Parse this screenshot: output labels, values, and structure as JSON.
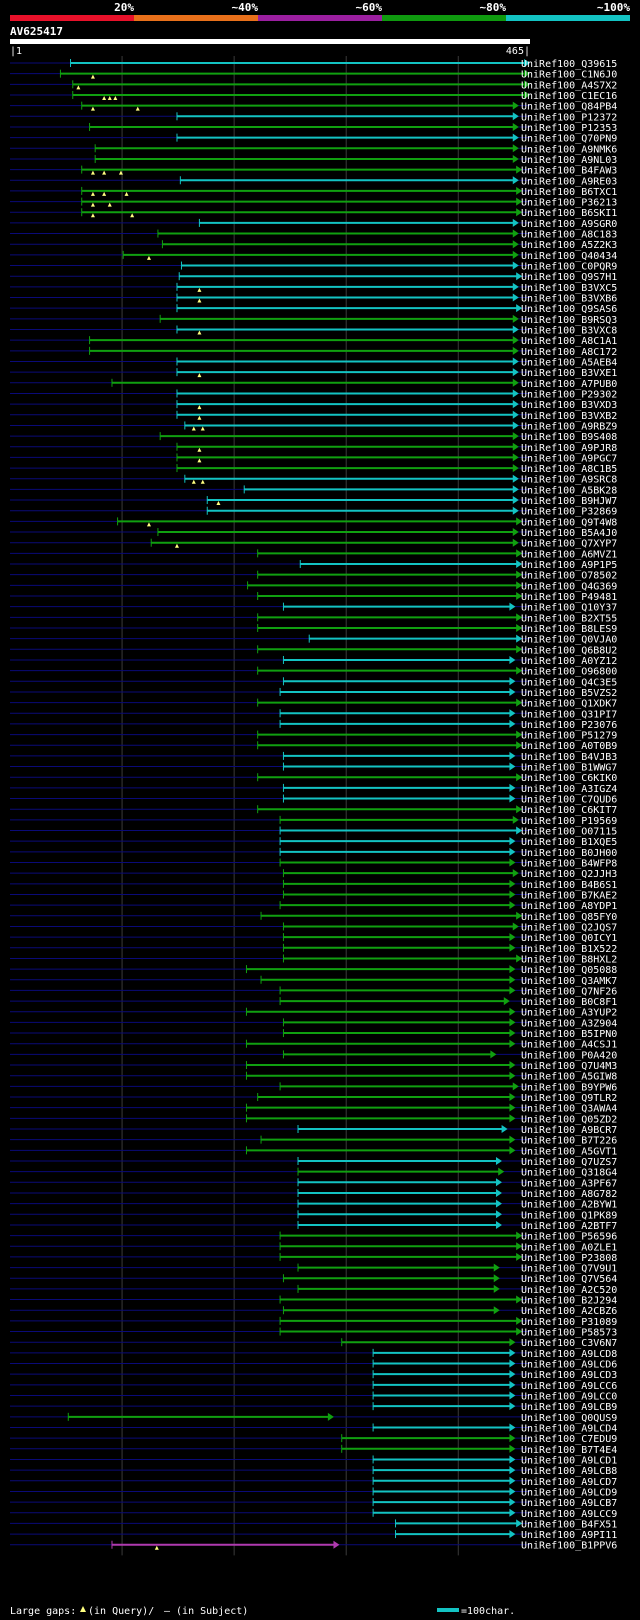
{
  "header": {
    "query_id": "AV625417",
    "range_start": "|1",
    "range_end": "465|",
    "query_length": 465,
    "percent_labels": [
      "20%",
      "~40%",
      "~60%",
      "~80%",
      "~100%"
    ],
    "bar_colors": [
      "#e8112a",
      "#e8701a",
      "#9b1fa0",
      "#0f9a0f",
      "#13c3c3"
    ]
  },
  "footer": {
    "large_gaps_label": "Large gaps:",
    "query_gap_label": "(in Query)/",
    "subject_gap_label": "— (in Subject)",
    "scale_label": "=100char.",
    "scale_chars": 100
  },
  "colors": {
    "cyan": "#13c3c3",
    "green": "#10a010",
    "magenta": "#b03ab0",
    "navy": "#0a0a78",
    "gap": "#ffff80",
    "grid": "#3a3a3a"
  },
  "hits": [
    {
      "id": "UniRef100_Q39615",
      "s": 55,
      "e": 465,
      "c": "cyan",
      "g": []
    },
    {
      "id": "UniRef100_C1N6J0",
      "s": 46,
      "e": 465,
      "c": "green",
      "g": [
        75
      ]
    },
    {
      "id": "UniRef100_A4S7X2",
      "s": 57,
      "e": 465,
      "c": "green",
      "g": [
        62
      ]
    },
    {
      "id": "UniRef100_C1EC16",
      "s": 57,
      "e": 465,
      "c": "green",
      "g": [
        85,
        90,
        95
      ]
    },
    {
      "id": "UniRef100_Q84PB4",
      "s": 65,
      "e": 455,
      "c": "green",
      "g": [
        75,
        115
      ]
    },
    {
      "id": "UniRef100_P12372",
      "s": 150,
      "e": 455,
      "c": "cyan",
      "g": []
    },
    {
      "id": "UniRef100_P12353",
      "s": 72,
      "e": 455,
      "c": "green",
      "g": []
    },
    {
      "id": "UniRef100_Q70PN9",
      "s": 150,
      "e": 455,
      "c": "cyan",
      "g": []
    },
    {
      "id": "UniRef100_A9NMK6",
      "s": 77,
      "e": 455,
      "c": "green",
      "g": []
    },
    {
      "id": "UniRef100_A9NL03",
      "s": 77,
      "e": 455,
      "c": "green",
      "g": []
    },
    {
      "id": "UniRef100_B4FAW3",
      "s": 65,
      "e": 458,
      "c": "green",
      "g": [
        75,
        85,
        100
      ]
    },
    {
      "id": "UniRef100_A9RE03",
      "s": 153,
      "e": 455,
      "c": "cyan",
      "g": []
    },
    {
      "id": "UniRef100_B6TXC1",
      "s": 65,
      "e": 458,
      "c": "green",
      "g": [
        75,
        85,
        105
      ]
    },
    {
      "id": "UniRef100_P36213",
      "s": 65,
      "e": 458,
      "c": "green",
      "g": [
        75,
        90
      ]
    },
    {
      "id": "UniRef100_B6SKI1",
      "s": 65,
      "e": 458,
      "c": "green",
      "g": [
        75,
        110
      ]
    },
    {
      "id": "UniRef100_A9SGR0",
      "s": 170,
      "e": 455,
      "c": "cyan",
      "g": []
    },
    {
      "id": "UniRef100_A8C183",
      "s": 133,
      "e": 455,
      "c": "green",
      "g": []
    },
    {
      "id": "UniRef100_A5Z2K3",
      "s": 137,
      "e": 455,
      "c": "green",
      "g": []
    },
    {
      "id": "UniRef100_Q40434",
      "s": 102,
      "e": 455,
      "c": "green",
      "g": [
        125
      ]
    },
    {
      "id": "UniRef100_C0PQR9",
      "s": 154,
      "e": 455,
      "c": "cyan",
      "g": []
    },
    {
      "id": "UniRef100_Q9S7H1",
      "s": 152,
      "e": 458,
      "c": "cyan",
      "g": []
    },
    {
      "id": "UniRef100_B3VXC5",
      "s": 150,
      "e": 455,
      "c": "cyan",
      "g": [
        170
      ]
    },
    {
      "id": "UniRef100_B3VXB6",
      "s": 150,
      "e": 455,
      "c": "cyan",
      "g": [
        170
      ]
    },
    {
      "id": "UniRef100_Q9SAS6",
      "s": 150,
      "e": 458,
      "c": "cyan",
      "g": []
    },
    {
      "id": "UniRef100_B9RSQ3",
      "s": 135,
      "e": 455,
      "c": "green",
      "g": []
    },
    {
      "id": "UniRef100_B3VXC8",
      "s": 150,
      "e": 455,
      "c": "cyan",
      "g": [
        170
      ]
    },
    {
      "id": "UniRef100_A8C1A1",
      "s": 72,
      "e": 455,
      "c": "green",
      "g": []
    },
    {
      "id": "UniRef100_A8C172",
      "s": 72,
      "e": 455,
      "c": "green",
      "g": []
    },
    {
      "id": "UniRef100_A5AEB4",
      "s": 150,
      "e": 455,
      "c": "cyan",
      "g": []
    },
    {
      "id": "UniRef100_B3VXE1",
      "s": 150,
      "e": 455,
      "c": "cyan",
      "g": [
        170
      ]
    },
    {
      "id": "UniRef100_A7PUB0",
      "s": 92,
      "e": 455,
      "c": "green",
      "g": []
    },
    {
      "id": "UniRef100_P29302",
      "s": 150,
      "e": 455,
      "c": "cyan",
      "g": []
    },
    {
      "id": "UniRef100_B3VXD3",
      "s": 150,
      "e": 455,
      "c": "cyan",
      "g": [
        170
      ]
    },
    {
      "id": "UniRef100_B3VXB2",
      "s": 150,
      "e": 455,
      "c": "cyan",
      "g": [
        170
      ]
    },
    {
      "id": "UniRef100_A9RBZ9",
      "s": 157,
      "e": 455,
      "c": "cyan",
      "g": [
        165,
        173
      ]
    },
    {
      "id": "UniRef100_B9S408",
      "s": 135,
      "e": 455,
      "c": "green",
      "g": []
    },
    {
      "id": "UniRef100_A9PJR8",
      "s": 150,
      "e": 455,
      "c": "green",
      "g": [
        170
      ]
    },
    {
      "id": "UniRef100_A9PGC7",
      "s": 150,
      "e": 455,
      "c": "green",
      "g": [
        170
      ]
    },
    {
      "id": "UniRef100_A8C1B5",
      "s": 150,
      "e": 455,
      "c": "green",
      "g": []
    },
    {
      "id": "UniRef100_A9SRC8",
      "s": 157,
      "e": 455,
      "c": "cyan",
      "g": [
        165,
        173
      ]
    },
    {
      "id": "UniRef100_A5BK28",
      "s": 210,
      "e": 455,
      "c": "cyan",
      "g": []
    },
    {
      "id": "UniRef100_B9HJW7",
      "s": 177,
      "e": 455,
      "c": "cyan",
      "g": [
        187
      ]
    },
    {
      "id": "UniRef100_P32869",
      "s": 177,
      "e": 455,
      "c": "cyan",
      "g": []
    },
    {
      "id": "UniRef100_Q9T4W8",
      "s": 97,
      "e": 458,
      "c": "green",
      "g": [
        125
      ]
    },
    {
      "id": "UniRef100_B5A4J0",
      "s": 133,
      "e": 455,
      "c": "green",
      "g": []
    },
    {
      "id": "UniRef100_Q7XYP7",
      "s": 127,
      "e": 455,
      "c": "green",
      "g": [
        150
      ]
    },
    {
      "id": "UniRef100_A6MVZ1",
      "s": 222,
      "e": 458,
      "c": "green",
      "g": []
    },
    {
      "id": "UniRef100_A9P1P5",
      "s": 260,
      "e": 458,
      "c": "cyan",
      "g": []
    },
    {
      "id": "UniRef100_O78502",
      "s": 222,
      "e": 458,
      "c": "green",
      "g": []
    },
    {
      "id": "UniRef100_Q4G369",
      "s": 213,
      "e": 458,
      "c": "green",
      "g": []
    },
    {
      "id": "UniRef100_P49481",
      "s": 222,
      "e": 458,
      "c": "green",
      "g": []
    },
    {
      "id": "UniRef100_Q10Y37",
      "s": 245,
      "e": 452,
      "c": "cyan",
      "g": []
    },
    {
      "id": "UniRef100_B2XT55",
      "s": 222,
      "e": 458,
      "c": "green",
      "g": []
    },
    {
      "id": "UniRef100_B8LES9",
      "s": 222,
      "e": 458,
      "c": "green",
      "g": []
    },
    {
      "id": "UniRef100_Q0VJA0",
      "s": 268,
      "e": 458,
      "c": "cyan",
      "g": []
    },
    {
      "id": "UniRef100_Q6B8U2",
      "s": 222,
      "e": 458,
      "c": "green",
      "g": []
    },
    {
      "id": "UniRef100_A0YZ12",
      "s": 245,
      "e": 452,
      "c": "cyan",
      "g": []
    },
    {
      "id": "UniRef100_O96800",
      "s": 222,
      "e": 458,
      "c": "green",
      "g": []
    },
    {
      "id": "UniRef100_Q4C3E5",
      "s": 245,
      "e": 452,
      "c": "cyan",
      "g": []
    },
    {
      "id": "UniRef100_B5VZS2",
      "s": 242,
      "e": 452,
      "c": "cyan",
      "g": []
    },
    {
      "id": "UniRef100_Q1XDK7",
      "s": 222,
      "e": 458,
      "c": "green",
      "g": []
    },
    {
      "id": "UniRef100_Q31PI7",
      "s": 242,
      "e": 452,
      "c": "cyan",
      "g": []
    },
    {
      "id": "UniRef100_P23076",
      "s": 242,
      "e": 452,
      "c": "cyan",
      "g": []
    },
    {
      "id": "UniRef100_P51279",
      "s": 222,
      "e": 458,
      "c": "green",
      "g": []
    },
    {
      "id": "UniRef100_A0T0B9",
      "s": 222,
      "e": 458,
      "c": "green",
      "g": []
    },
    {
      "id": "UniRef100_B4VJB3",
      "s": 245,
      "e": 452,
      "c": "cyan",
      "g": []
    },
    {
      "id": "UniRef100_B1WWG7",
      "s": 245,
      "e": 452,
      "c": "cyan",
      "g": []
    },
    {
      "id": "UniRef100_C6KIK0",
      "s": 222,
      "e": 458,
      "c": "green",
      "g": []
    },
    {
      "id": "UniRef100_A3IGZ4",
      "s": 245,
      "e": 452,
      "c": "cyan",
      "g": []
    },
    {
      "id": "UniRef100_C7QUD6",
      "s": 245,
      "e": 452,
      "c": "cyan",
      "g": []
    },
    {
      "id": "UniRef100_C6KIT7",
      "s": 222,
      "e": 458,
      "c": "green",
      "g": []
    },
    {
      "id": "UniRef100_P19569",
      "s": 242,
      "e": 455,
      "c": "green",
      "g": []
    },
    {
      "id": "UniRef100_O07115",
      "s": 242,
      "e": 458,
      "c": "cyan",
      "g": []
    },
    {
      "id": "UniRef100_B1XQE5",
      "s": 242,
      "e": 452,
      "c": "cyan",
      "g": []
    },
    {
      "id": "UniRef100_B0JH00",
      "s": 242,
      "e": 452,
      "c": "cyan",
      "g": []
    },
    {
      "id": "UniRef100_B4WFP8",
      "s": 242,
      "e": 452,
      "c": "green",
      "g": []
    },
    {
      "id": "UniRef100_Q2JJH3",
      "s": 245,
      "e": 455,
      "c": "green",
      "g": []
    },
    {
      "id": "UniRef100_B4B6S1",
      "s": 245,
      "e": 452,
      "c": "green",
      "g": []
    },
    {
      "id": "UniRef100_B7KAE2",
      "s": 245,
      "e": 452,
      "c": "green",
      "g": []
    },
    {
      "id": "UniRef100_A8YDP1",
      "s": 242,
      "e": 452,
      "c": "green",
      "g": []
    },
    {
      "id": "UniRef100_Q85FY0",
      "s": 225,
      "e": 458,
      "c": "green",
      "g": []
    },
    {
      "id": "UniRef100_Q2JQS7",
      "s": 245,
      "e": 455,
      "c": "green",
      "g": []
    },
    {
      "id": "UniRef100_Q0ICY1",
      "s": 245,
      "e": 452,
      "c": "green",
      "g": []
    },
    {
      "id": "UniRef100_B1X522",
      "s": 245,
      "e": 452,
      "c": "green",
      "g": []
    },
    {
      "id": "UniRef100_B8HXL2",
      "s": 245,
      "e": 458,
      "c": "green",
      "g": []
    },
    {
      "id": "UniRef100_Q05088",
      "s": 212,
      "e": 452,
      "c": "green",
      "g": []
    },
    {
      "id": "UniRef100_Q3AMK7",
      "s": 225,
      "e": 452,
      "c": "green",
      "g": []
    },
    {
      "id": "UniRef100_Q7NF26",
      "s": 242,
      "e": 452,
      "c": "green",
      "g": []
    },
    {
      "id": "UniRef100_B0C8F1",
      "s": 242,
      "e": 447,
      "c": "green",
      "g": []
    },
    {
      "id": "UniRef100_A3YUP2",
      "s": 212,
      "e": 452,
      "c": "green",
      "g": []
    },
    {
      "id": "UniRef100_A3Z904",
      "s": 245,
      "e": 452,
      "c": "green",
      "g": []
    },
    {
      "id": "UniRef100_B5IPN0",
      "s": 245,
      "e": 452,
      "c": "green",
      "g": []
    },
    {
      "id": "UniRef100_A4CSJ1",
      "s": 212,
      "e": 452,
      "c": "green",
      "g": []
    },
    {
      "id": "UniRef100_P0A420",
      "s": 245,
      "e": 435,
      "c": "green",
      "g": []
    },
    {
      "id": "UniRef100_Q7U4M3",
      "s": 212,
      "e": 452,
      "c": "green",
      "g": []
    },
    {
      "id": "UniRef100_A5GIW8",
      "s": 212,
      "e": 452,
      "c": "green",
      "g": []
    },
    {
      "id": "UniRef100_B9YPW6",
      "s": 242,
      "e": 455,
      "c": "green",
      "g": []
    },
    {
      "id": "UniRef100_Q9TLR2",
      "s": 222,
      "e": 452,
      "c": "green",
      "g": []
    },
    {
      "id": "UniRef100_Q3AWA4",
      "s": 212,
      "e": 452,
      "c": "green",
      "g": []
    },
    {
      "id": "UniRef100_Q05ZD2",
      "s": 212,
      "e": 452,
      "c": "green",
      "g": []
    },
    {
      "id": "UniRef100_A9BCR7",
      "s": 258,
      "e": 445,
      "c": "cyan",
      "g": []
    },
    {
      "id": "UniRef100_B7T226",
      "s": 225,
      "e": 452,
      "c": "green",
      "g": []
    },
    {
      "id": "UniRef100_A5GVT1",
      "s": 212,
      "e": 452,
      "c": "green",
      "g": []
    },
    {
      "id": "UniRef100_Q7UZS7",
      "s": 258,
      "e": 440,
      "c": "cyan",
      "g": []
    },
    {
      "id": "UniRef100_Q318G4",
      "s": 258,
      "e": 442,
      "c": "green",
      "g": []
    },
    {
      "id": "UniRef100_A3PF67",
      "s": 258,
      "e": 440,
      "c": "cyan",
      "g": []
    },
    {
      "id": "UniRef100_A8G782",
      "s": 258,
      "e": 440,
      "c": "cyan",
      "g": []
    },
    {
      "id": "UniRef100_A2BYW1",
      "s": 258,
      "e": 440,
      "c": "cyan",
      "g": []
    },
    {
      "id": "UniRef100_Q1PK89",
      "s": 258,
      "e": 440,
      "c": "cyan",
      "g": []
    },
    {
      "id": "UniRef100_A2BTF7",
      "s": 258,
      "e": 440,
      "c": "cyan",
      "g": []
    },
    {
      "id": "UniRef100_P56596",
      "s": 242,
      "e": 458,
      "c": "green",
      "g": []
    },
    {
      "id": "UniRef100_A0ZLE1",
      "s": 242,
      "e": 458,
      "c": "green",
      "g": []
    },
    {
      "id": "UniRef100_P23808",
      "s": 242,
      "e": 458,
      "c": "green",
      "g": []
    },
    {
      "id": "UniRef100_Q7V9U1",
      "s": 258,
      "e": 438,
      "c": "green",
      "g": []
    },
    {
      "id": "UniRef100_Q7V564",
      "s": 245,
      "e": 438,
      "c": "green",
      "g": []
    },
    {
      "id": "UniRef100_A2C520",
      "s": 258,
      "e": 438,
      "c": "green",
      "g": []
    },
    {
      "id": "UniRef100_B2J294",
      "s": 242,
      "e": 458,
      "c": "green",
      "g": []
    },
    {
      "id": "UniRef100_A2CBZ6",
      "s": 245,
      "e": 438,
      "c": "green",
      "g": []
    },
    {
      "id": "UniRef100_P31089",
      "s": 242,
      "e": 458,
      "c": "green",
      "g": []
    },
    {
      "id": "UniRef100_P58573",
      "s": 242,
      "e": 458,
      "c": "green",
      "g": []
    },
    {
      "id": "UniRef100_C3V6N7",
      "s": 297,
      "e": 452,
      "c": "green",
      "g": []
    },
    {
      "id": "UniRef100_A9LCD8",
      "s": 325,
      "e": 452,
      "c": "cyan",
      "g": []
    },
    {
      "id": "UniRef100_A9LCD6",
      "s": 325,
      "e": 452,
      "c": "cyan",
      "g": []
    },
    {
      "id": "UniRef100_A9LCD3",
      "s": 325,
      "e": 452,
      "c": "cyan",
      "g": []
    },
    {
      "id": "UniRef100_A9LCC6",
      "s": 325,
      "e": 452,
      "c": "cyan",
      "g": []
    },
    {
      "id": "UniRef100_A9LCC0",
      "s": 325,
      "e": 452,
      "c": "cyan",
      "g": []
    },
    {
      "id": "UniRef100_A9LCB9",
      "s": 325,
      "e": 452,
      "c": "cyan",
      "g": []
    },
    {
      "id": "UniRef100_Q0QUS9",
      "s": 53,
      "e": 290,
      "c": "green",
      "g": []
    },
    {
      "id": "UniRef100_A9LCD4",
      "s": 325,
      "e": 452,
      "c": "cyan",
      "g": []
    },
    {
      "id": "UniRef100_C7EDU9",
      "s": 297,
      "e": 452,
      "c": "green",
      "g": []
    },
    {
      "id": "UniRef100_B7T4E4",
      "s": 297,
      "e": 452,
      "c": "green",
      "g": []
    },
    {
      "id": "UniRef100_A9LCD1",
      "s": 325,
      "e": 452,
      "c": "cyan",
      "g": []
    },
    {
      "id": "UniRef100_A9LCB8",
      "s": 325,
      "e": 452,
      "c": "cyan",
      "g": []
    },
    {
      "id": "UniRef100_A9LCD7",
      "s": 325,
      "e": 452,
      "c": "cyan",
      "g": []
    },
    {
      "id": "UniRef100_A9LCD9",
      "s": 325,
      "e": 452,
      "c": "cyan",
      "g": []
    },
    {
      "id": "UniRef100_A9LCB7",
      "s": 325,
      "e": 452,
      "c": "cyan",
      "g": []
    },
    {
      "id": "UniRef100_A9LCC9",
      "s": 325,
      "e": 452,
      "c": "cyan",
      "g": []
    },
    {
      "id": "UniRef100_B4FX51",
      "s": 345,
      "e": 458,
      "c": "cyan",
      "g": []
    },
    {
      "id": "UniRef100_A9PI11",
      "s": 345,
      "e": 452,
      "c": "cyan",
      "g": []
    },
    {
      "id": "UniRef100_B1PPV6",
      "s": 92,
      "e": 295,
      "c": "magenta",
      "g": [
        132
      ]
    }
  ]
}
